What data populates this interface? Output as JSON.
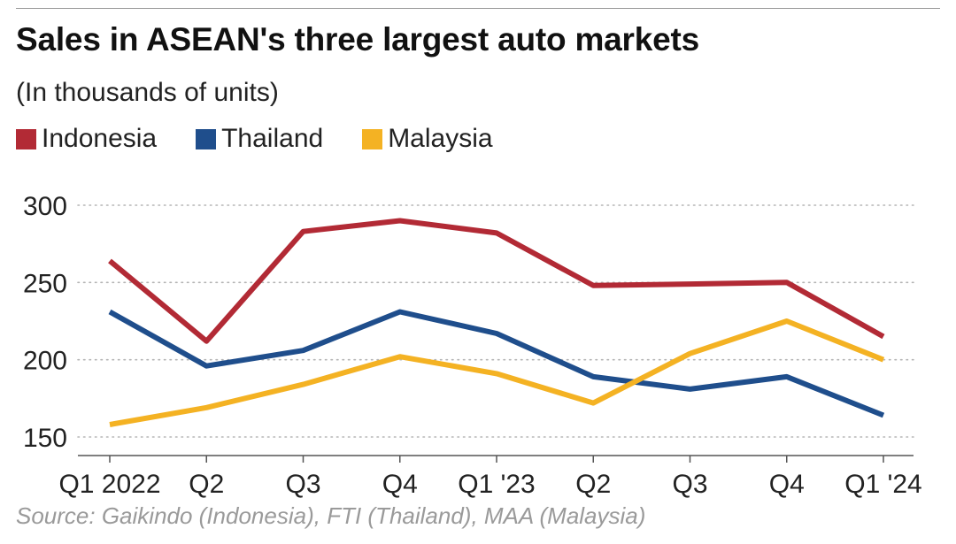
{
  "header": {
    "title": "Sales in ASEAN's three largest auto markets",
    "subtitle": "(In thousands of units)"
  },
  "legend": [
    {
      "label": "Indonesia",
      "color": "#b22a35"
    },
    {
      "label": "Thailand",
      "color": "#1f4e8c"
    },
    {
      "label": "Malaysia",
      "color": "#f4b223"
    }
  ],
  "footer": {
    "source": "Source: Gaikindo (Indonesia), FTI (Thailand), MAA (Malaysia)"
  },
  "chart_data": {
    "type": "line",
    "title": "Sales in ASEAN's three largest auto markets",
    "subtitle": "(In thousands of units)",
    "xlabel": "",
    "ylabel": "",
    "categories": [
      "Q1 2022",
      "Q2",
      "Q3",
      "Q4",
      "Q1 '23",
      "Q2",
      "Q3",
      "Q4",
      "Q1 '24"
    ],
    "yticks": [
      150,
      200,
      250,
      300
    ],
    "ylim": [
      140,
      308
    ],
    "grid": "horizontal dotted",
    "legend_position": "top-left",
    "series": [
      {
        "name": "Indonesia",
        "color": "#b22a35",
        "values": [
          264,
          212,
          283,
          290,
          282,
          248,
          249,
          250,
          215
        ]
      },
      {
        "name": "Thailand",
        "color": "#1f4e8c",
        "values": [
          231,
          196,
          206,
          231,
          217,
          189,
          181,
          189,
          164
        ]
      },
      {
        "name": "Malaysia",
        "color": "#f4b223",
        "values": [
          158,
          169,
          184,
          202,
          191,
          172,
          204,
          225,
          200
        ]
      }
    ]
  }
}
